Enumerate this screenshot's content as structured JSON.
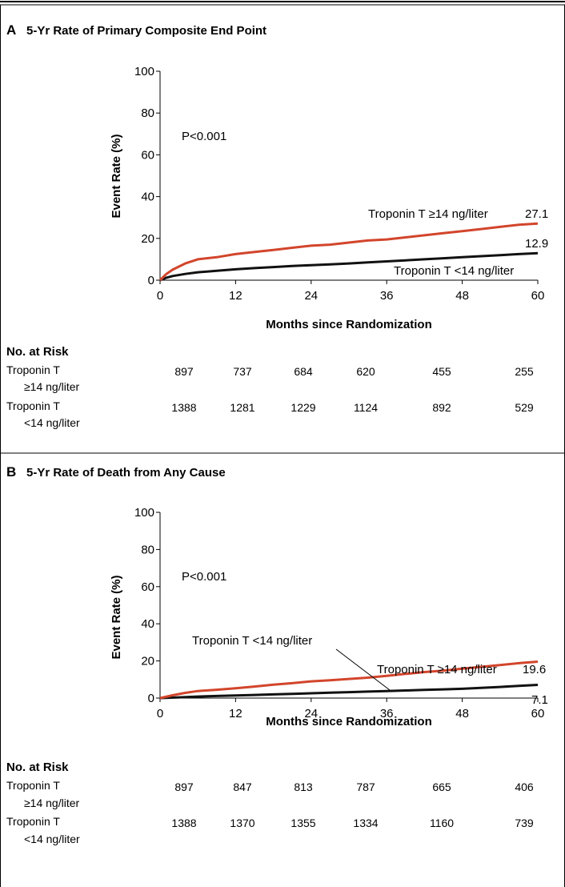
{
  "chart_data": [
    {
      "type": "line",
      "panel": "A",
      "title": "5-Yr Rate of Primary Composite End Point",
      "xlabel": "Months since Randomization",
      "ylabel": "Event Rate (%)",
      "xlim": [
        0,
        60
      ],
      "ylim": [
        0,
        100
      ],
      "xticks": [
        0,
        12,
        24,
        36,
        48,
        60
      ],
      "yticks": [
        0,
        20,
        40,
        60,
        80,
        100
      ],
      "annotation": "P<0.001",
      "series": [
        {
          "name": "Troponin T ≥14 ng/liter",
          "color": "#d2452c",
          "end_label": "27.1",
          "x": [
            0,
            1,
            2,
            4,
            6,
            9,
            12,
            15,
            18,
            21,
            24,
            27,
            30,
            33,
            36,
            39,
            42,
            45,
            48,
            51,
            54,
            57,
            60
          ],
          "y": [
            0,
            3,
            5,
            8,
            10,
            11,
            12.5,
            13.5,
            14.5,
            15.5,
            16.5,
            17,
            18,
            19,
            19.5,
            20.5,
            21.5,
            22.5,
            23.5,
            24.5,
            25.5,
            26.5,
            27.1
          ]
        },
        {
          "name": "Troponin T <14 ng/liter",
          "color": "#111111",
          "end_label": "12.9",
          "x": [
            0,
            1,
            2,
            4,
            6,
            9,
            12,
            15,
            18,
            21,
            24,
            27,
            30,
            33,
            36,
            39,
            42,
            45,
            48,
            51,
            54,
            57,
            60
          ],
          "y": [
            0,
            1.2,
            2,
            3,
            3.8,
            4.5,
            5.2,
            5.8,
            6.3,
            6.8,
            7.2,
            7.6,
            8,
            8.5,
            9,
            9.5,
            10,
            10.5,
            11,
            11.5,
            12,
            12.5,
            12.9
          ]
        }
      ],
      "risk_table": {
        "header": "No. at Risk",
        "rows": [
          {
            "label_line1": "Troponin T",
            "label_line2": "≥14 ng/liter",
            "values": [
              "897",
              "737",
              "684",
              "620",
              "455",
              "255"
            ]
          },
          {
            "label_line1": "Troponin T",
            "label_line2": "<14 ng/liter",
            "values": [
              "1388",
              "1281",
              "1229",
              "1124",
              "892",
              "529"
            ]
          }
        ]
      }
    },
    {
      "type": "line",
      "panel": "B",
      "title": "5-Yr Rate of Death from Any Cause",
      "xlabel": "Months since Randomization",
      "ylabel": "Event Rate (%)",
      "xlim": [
        0,
        60
      ],
      "ylim": [
        0,
        100
      ],
      "xticks": [
        0,
        12,
        24,
        36,
        48,
        60
      ],
      "yticks": [
        0,
        20,
        40,
        60,
        80,
        100
      ],
      "annotation": "P<0.001",
      "series": [
        {
          "name": "Troponin T ≥14 ng/liter",
          "color": "#d2452c",
          "end_label": "19.6",
          "x": [
            0,
            2,
            4,
            6,
            9,
            12,
            15,
            18,
            21,
            24,
            27,
            30,
            33,
            36,
            39,
            42,
            45,
            48,
            51,
            54,
            57,
            60
          ],
          "y": [
            0,
            1.5,
            2.8,
            3.8,
            4.5,
            5.3,
            6.2,
            7.2,
            8,
            9,
            9.6,
            10.3,
            11,
            12,
            13,
            14,
            14.8,
            15.8,
            16.8,
            17.8,
            18.8,
            19.6
          ]
        },
        {
          "name": "Troponin T <14 ng/liter",
          "color": "#111111",
          "end_label": "7.1",
          "x": [
            0,
            3,
            6,
            9,
            12,
            15,
            18,
            21,
            24,
            27,
            30,
            33,
            36,
            39,
            42,
            45,
            48,
            51,
            54,
            57,
            60
          ],
          "y": [
            0,
            0.4,
            0.8,
            1.1,
            1.4,
            1.7,
            2,
            2.3,
            2.6,
            2.9,
            3.2,
            3.5,
            3.8,
            4.1,
            4.4,
            4.7,
            5,
            5.5,
            6,
            6.6,
            7.1
          ]
        }
      ],
      "risk_table": {
        "header": "No. at Risk",
        "rows": [
          {
            "label_line1": "Troponin T",
            "label_line2": "≥14 ng/liter",
            "values": [
              "897",
              "847",
              "813",
              "787",
              "665",
              "406"
            ]
          },
          {
            "label_line1": "Troponin T",
            "label_line2": "<14 ng/liter",
            "values": [
              "1388",
              "1370",
              "1355",
              "1334",
              "1160",
              "739"
            ]
          }
        ]
      }
    }
  ]
}
